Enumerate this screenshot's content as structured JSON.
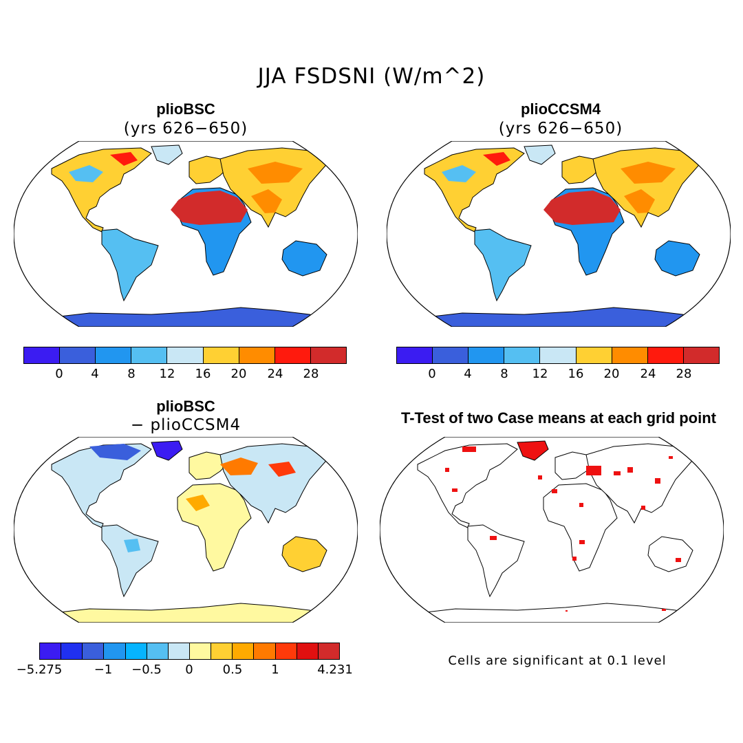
{
  "title": "JJA FSDSNI (W/m^2)",
  "panels": {
    "top_left": {
      "title": "plioBSC",
      "subtitle": "(yrs 626−650)"
    },
    "top_right": {
      "title": "plioCCSM4",
      "subtitle": "(yrs 626−650)"
    },
    "bottom_left": {
      "title": "plioBSC",
      "subtitle": "− plioCCSM4"
    },
    "bottom_right": {
      "title": "T-Test of two Case means at each grid point",
      "note": "Cells are significant at 0.1 level"
    }
  },
  "colorbars": {
    "absolute": {
      "colors": [
        "#3b1cf2",
        "#3a5fdc",
        "#2196f0",
        "#55bff2",
        "#c9e7f5",
        "#ffd033",
        "#ff8c00",
        "#ff1a0d",
        "#d22b2b"
      ],
      "ticks": [
        "0",
        "4",
        "8",
        "12",
        "16",
        "20",
        "24",
        "28"
      ]
    },
    "difference": {
      "colors": [
        "#3b1cf2",
        "#2030f0",
        "#3a5fdc",
        "#2196f0",
        "#06b4ff",
        "#55bff2",
        "#c9e7f5",
        "#fff9a0",
        "#ffd033",
        "#ffaa00",
        "#ff7a00",
        "#ff3a0a",
        "#e01010",
        "#d22b2b"
      ],
      "ticks": [
        "−5.275",
        "−1",
        "−0.5",
        "0",
        "0.5",
        "1",
        "4.231"
      ]
    }
  },
  "legend_colors": {
    "significant": "#ee1111",
    "ocean": "#ffffff",
    "coast": "#000000"
  }
}
